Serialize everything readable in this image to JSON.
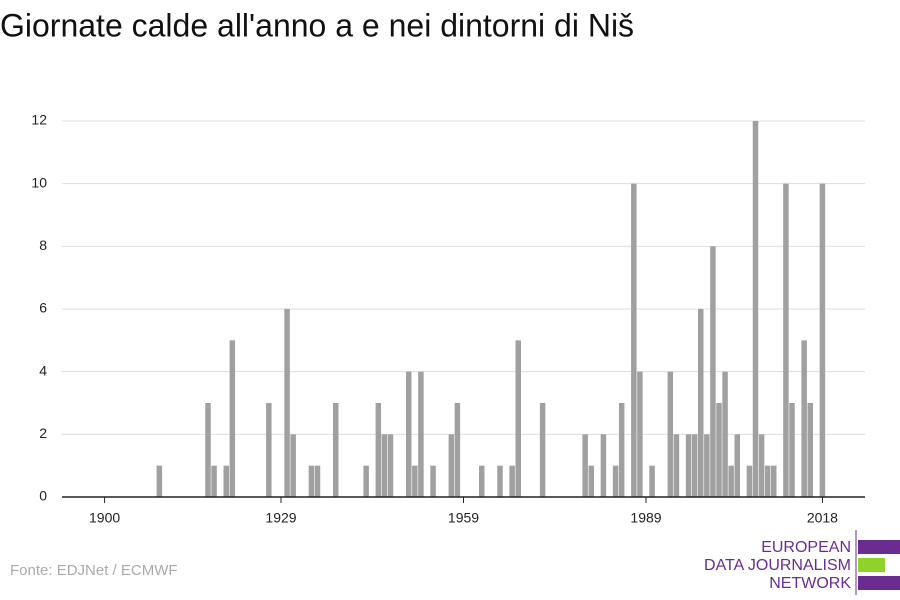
{
  "chart_data": {
    "type": "bar",
    "title": "Giornate calde all'anno a e nei dintorni di Niš",
    "source": "Fonte: EDJNet / ECMWF",
    "logo": [
      "EUROPEAN",
      "DATA JOURNALISM",
      "NETWORK"
    ],
    "color": "#a0a0a0",
    "x": [
      1909,
      1917,
      1918,
      1920,
      1921,
      1927,
      1930,
      1931,
      1934,
      1935,
      1938,
      1943,
      1945,
      1946,
      1947,
      1950,
      1951,
      1952,
      1954,
      1957,
      1958,
      1962,
      1965,
      1967,
      1968,
      1972,
      1979,
      1980,
      1982,
      1984,
      1985,
      1987,
      1988,
      1990,
      1993,
      1994,
      1996,
      1997,
      1998,
      1999,
      2000,
      2001,
      2002,
      2003,
      2004,
      2006,
      2007,
      2008,
      2009,
      2010,
      2012,
      2013,
      2015,
      2016,
      2018
    ],
    "values": [
      1,
      3,
      1,
      1,
      5,
      3,
      6,
      2,
      1,
      1,
      3,
      1,
      3,
      2,
      2,
      4,
      1,
      4,
      1,
      2,
      3,
      1,
      1,
      1,
      5,
      3,
      2,
      1,
      2,
      1,
      3,
      10,
      4,
      1,
      4,
      2,
      2,
      2,
      6,
      2,
      8,
      3,
      4,
      1,
      2,
      1,
      12,
      2,
      1,
      1,
      10,
      3,
      5,
      3,
      10
    ],
    "xlim": [
      1893,
      2025
    ],
    "xticks": [
      1900,
      1929,
      1959,
      1989,
      2018
    ],
    "ylim": [
      0,
      12
    ],
    "yticks": [
      0,
      2,
      4,
      6,
      8,
      10,
      12
    ],
    "grid": true
  }
}
